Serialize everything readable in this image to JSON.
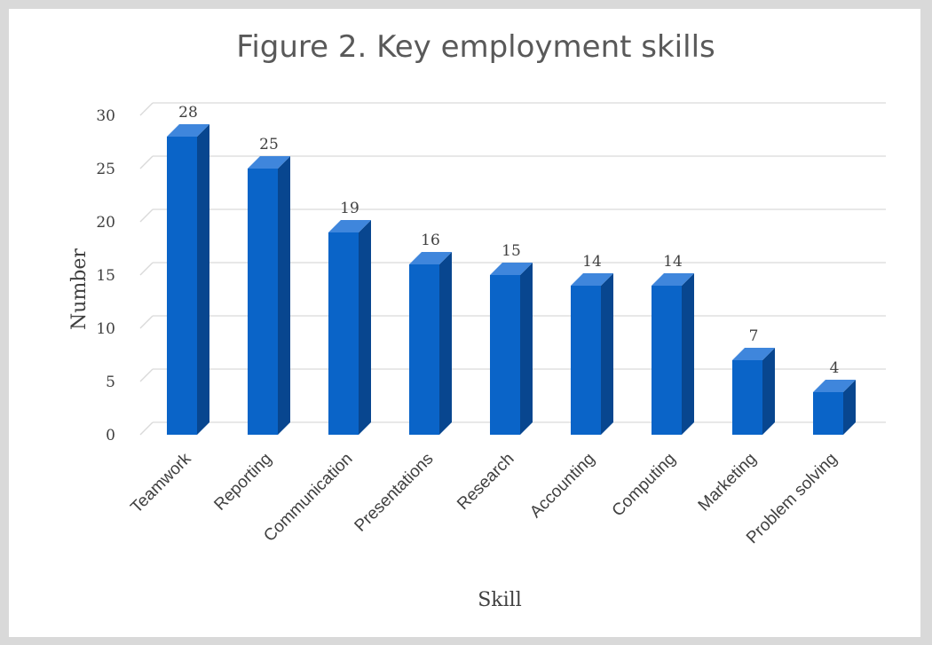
{
  "chart_data": {
    "type": "bar",
    "title": "Figure 2. Key employment skills",
    "xlabel": "Skill",
    "ylabel": "Number",
    "categories": [
      "Teamwork",
      "Reporting",
      "Communication",
      "Presentations",
      "Research",
      "Accounting",
      "Computing",
      "Marketing",
      "Problem solving"
    ],
    "values": [
      28,
      25,
      19,
      16,
      15,
      14,
      14,
      7,
      4
    ],
    "yticks": [
      "0",
      "5",
      "10",
      "15",
      "20",
      "25",
      "30"
    ],
    "ylim": [
      0,
      30
    ],
    "grid": true,
    "legend": "none",
    "colors": {
      "bar_front": "#0a64c8",
      "bar_side": "#08468f",
      "bar_top": "#3f86dc"
    }
  }
}
